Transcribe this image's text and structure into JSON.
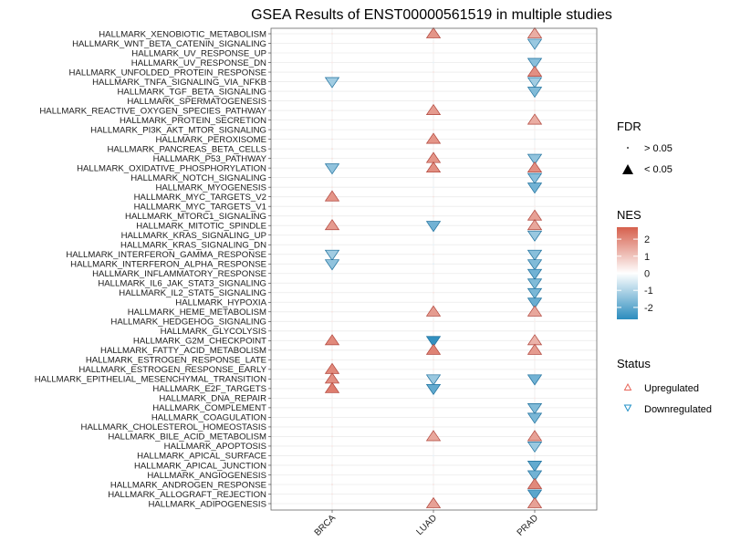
{
  "chart_data": {
    "type": "scatter",
    "title": "GSEA Results of ENST00000561519 in multiple studies",
    "xlabel": "",
    "ylabel": "",
    "studies": [
      "BRCA",
      "LUAD",
      "PRAD"
    ],
    "pathways": [
      "HALLMARK_XENOBIOTIC_METABOLISM",
      "HALLMARK_WNT_BETA_CATENIN_SIGNALING",
      "HALLMARK_UV_RESPONSE_UP",
      "HALLMARK_UV_RESPONSE_DN",
      "HALLMARK_UNFOLDED_PROTEIN_RESPONSE",
      "HALLMARK_TNFA_SIGNALING_VIA_NFKB",
      "HALLMARK_TGF_BETA_SIGNALING",
      "HALLMARK_SPERMATOGENESIS",
      "HALLMARK_REACTIVE_OXYGEN_SPECIES_PATHWAY",
      "HALLMARK_PROTEIN_SECRETION",
      "HALLMARK_PI3K_AKT_MTOR_SIGNALING",
      "HALLMARK_PEROXISOME",
      "HALLMARK_PANCREAS_BETA_CELLS",
      "HALLMARK_P53_PATHWAY",
      "HALLMARK_OXIDATIVE_PHOSPHORYLATION",
      "HALLMARK_NOTCH_SIGNALING",
      "HALLMARK_MYOGENESIS",
      "HALLMARK_MYC_TARGETS_V2",
      "HALLMARK_MYC_TARGETS_V1",
      "HALLMARK_MTORC1_SIGNALING",
      "HALLMARK_MITOTIC_SPINDLE",
      "HALLMARK_KRAS_SIGNALING_UP",
      "HALLMARK_KRAS_SIGNALING_DN",
      "HALLMARK_INTERFERON_GAMMA_RESPONSE",
      "HALLMARK_INTERFERON_ALPHA_RESPONSE",
      "HALLMARK_INFLAMMATORY_RESPONSE",
      "HALLMARK_IL6_JAK_STAT3_SIGNALING",
      "HALLMARK_IL2_STAT5_SIGNALING",
      "HALLMARK_HYPOXIA",
      "HALLMARK_HEME_METABOLISM",
      "HALLMARK_HEDGEHOG_SIGNALING",
      "HALLMARK_GLYCOLYSIS",
      "HALLMARK_G2M_CHECKPOINT",
      "HALLMARK_FATTY_ACID_METABOLISM",
      "HALLMARK_ESTROGEN_RESPONSE_LATE",
      "HALLMARK_ESTROGEN_RESPONSE_EARLY",
      "HALLMARK_EPITHELIAL_MESENCHYMAL_TRANSITION",
      "HALLMARK_E2F_TARGETS",
      "HALLMARK_DNA_REPAIR",
      "HALLMARK_COMPLEMENT",
      "HALLMARK_COAGULATION",
      "HALLMARK_CHOLESTEROL_HOMEOSTASIS",
      "HALLMARK_BILE_ACID_METABOLISM",
      "HALLMARK_APOPTOSIS",
      "HALLMARK_APICAL_SURFACE",
      "HALLMARK_APICAL_JUNCTION",
      "HALLMARK_ANGIOGENESIS",
      "HALLMARK_ANDROGEN_RESPONSE",
      "HALLMARK_ALLOGRAFT_REJECTION",
      "HALLMARK_ADIPOGENESIS"
    ],
    "nes": {
      "BRCA": [
        0.5,
        0.4,
        0.3,
        0.4,
        0.6,
        -1.2,
        -0.3,
        0.4,
        0.5,
        0.5,
        0.4,
        0.5,
        0.6,
        0.5,
        -1.4,
        0.3,
        0.5,
        1.8,
        0.5,
        0.6,
        1.7,
        0.3,
        0.4,
        -1.2,
        -1.4,
        -0.3,
        0.3,
        0.4,
        0.5,
        0.5,
        0.4,
        0.5,
        2.0,
        0.5,
        0.6,
        2.0,
        1.9,
        2.2,
        0.3,
        0.4,
        0.3,
        0.6,
        0.5,
        0.4,
        0.3,
        0.5,
        0.4,
        0.6,
        0.5,
        0.4
      ],
      "LUAD": [
        1.8,
        0.4,
        0.3,
        -0.3,
        0.5,
        0.4,
        0.4,
        0.5,
        1.7,
        0.4,
        0.5,
        1.8,
        0.4,
        1.8,
        1.9,
        -0.4,
        -0.3,
        0.5,
        0.4,
        0.5,
        -1.8,
        0.4,
        -0.3,
        0.5,
        -0.4,
        0.4,
        0.3,
        0.5,
        0.4,
        1.7,
        0.3,
        0.4,
        -2.6,
        2.1,
        0.5,
        0.4,
        -1.3,
        -2.0,
        0.3,
        0.4,
        0.3,
        0.5,
        1.5,
        0.4,
        -0.3,
        0.4,
        0.3,
        0.5,
        0.4,
        1.6
      ],
      "PRAD": [
        1.4,
        -1.3,
        0.3,
        -1.5,
        1.9,
        -1.2,
        -1.6,
        0.4,
        0.5,
        1.4,
        0.3,
        -0.4,
        0.4,
        -1.4,
        1.9,
        -1.5,
        -1.8,
        0.4,
        0.3,
        1.6,
        1.5,
        -1.3,
        0.4,
        -1.5,
        -1.6,
        -1.8,
        -1.6,
        -1.7,
        -1.9,
        1.5,
        0.3,
        0.4,
        1.3,
        1.7,
        0.4,
        0.3,
        -1.8,
        0.4,
        0.4,
        -1.6,
        -1.7,
        0.3,
        1.6,
        -1.3,
        0.4,
        -2.0,
        -1.8,
        2.0,
        -2.1,
        1.6
      ]
    },
    "significant": {
      "BRCA": [
        0,
        0,
        0,
        0,
        0,
        1,
        0,
        0,
        0,
        0,
        0,
        0,
        0,
        0,
        1,
        0,
        0,
        1,
        0,
        0,
        1,
        0,
        0,
        1,
        1,
        0,
        0,
        0,
        0,
        0,
        0,
        0,
        1,
        0,
        0,
        1,
        1,
        1,
        0,
        0,
        0,
        0,
        0,
        0,
        0,
        0,
        0,
        0,
        0,
        0
      ],
      "LUAD": [
        1,
        0,
        0,
        0,
        0,
        0,
        0,
        0,
        1,
        0,
        0,
        1,
        0,
        1,
        1,
        0,
        0,
        0,
        0,
        0,
        1,
        0,
        0,
        0,
        0,
        0,
        0,
        0,
        0,
        1,
        0,
        0,
        1,
        1,
        0,
        0,
        1,
        1,
        0,
        0,
        0,
        0,
        1,
        0,
        0,
        0,
        0,
        0,
        0,
        1
      ],
      "PRAD": [
        1,
        1,
        0,
        1,
        1,
        1,
        1,
        0,
        0,
        1,
        0,
        0,
        0,
        1,
        1,
        1,
        1,
        0,
        0,
        1,
        1,
        1,
        0,
        1,
        1,
        1,
        1,
        1,
        1,
        1,
        0,
        0,
        1,
        1,
        0,
        0,
        1,
        0,
        0,
        1,
        1,
        0,
        1,
        1,
        0,
        1,
        1,
        1,
        1,
        1
      ]
    },
    "legend": {
      "fdr_title": "FDR",
      "fdr_gt": "> 0.05",
      "fdr_lt": "< 0.05",
      "nes_title": "NES",
      "nes_ticks": [
        "2",
        "1",
        "0",
        "-1",
        "-2"
      ],
      "nes_tick_values": [
        2,
        1,
        0,
        -1,
        -2
      ],
      "nes_range": [
        -2.7,
        2.7
      ],
      "status_title": "Status",
      "status_up": "Upregulated",
      "status_down": "Downregulated"
    },
    "colors": {
      "high": "#d6604d",
      "mid": "#ffffff",
      "low": "#2b8cbe",
      "up_stroke": "#e8665a",
      "down_stroke": "#1f8fc7",
      "grid": "#ebebeb",
      "panel_border": "#666666"
    }
  }
}
